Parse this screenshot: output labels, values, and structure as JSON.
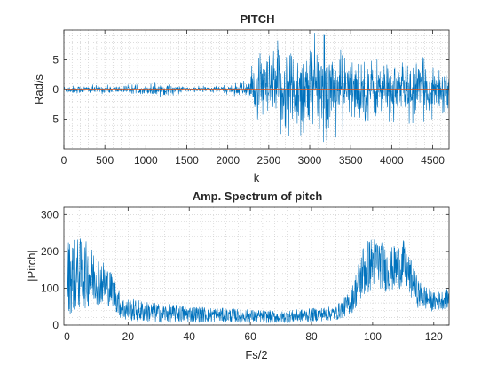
{
  "chart_data": [
    {
      "type": "line",
      "title": "PITCH",
      "xlabel": "k",
      "ylabel": "Rad/s",
      "xlim": [
        0,
        4700
      ],
      "ylim": [
        -10,
        10
      ],
      "xticks": [
        0,
        500,
        1000,
        1500,
        2000,
        2500,
        3000,
        3500,
        4000,
        4500
      ],
      "yticks": [
        -5,
        0,
        5
      ],
      "grid": "minor-dotted",
      "series": [
        {
          "color": "#0072BD",
          "description": "noisy signal, low amplitude before k≈2200, high amplitude after",
          "envelope": [
            {
              "k": 0,
              "amp": 0.8
            },
            {
              "k": 1000,
              "amp": 0.8
            },
            {
              "k": 1100,
              "amp": 1.5
            },
            {
              "k": 1500,
              "amp": 0.5
            },
            {
              "k": 2000,
              "amp": 0.8
            },
            {
              "k": 2200,
              "amp": 1.5
            },
            {
              "k": 2350,
              "amp": 5.5
            },
            {
              "k": 2650,
              "amp": 9.5
            },
            {
              "k": 3150,
              "amp": 9.5
            },
            {
              "k": 3500,
              "amp": 6.5
            },
            {
              "k": 4000,
              "amp": 6.0
            },
            {
              "k": 4700,
              "amp": 5.0
            }
          ]
        },
        {
          "color": "#D95319",
          "description": "near-zero line",
          "x": [
            0,
            4700
          ],
          "y": [
            0,
            0
          ]
        }
      ]
    },
    {
      "type": "line",
      "title": "Amp. Spectrum of pitch",
      "xlabel": "Fs/2",
      "ylabel": "|Pitch|",
      "xlim": [
        -1,
        125
      ],
      "ylim": [
        0,
        320
      ],
      "xticks": [
        0,
        20,
        40,
        60,
        80,
        100,
        120
      ],
      "yticks": [
        0,
        100,
        200,
        300
      ],
      "grid": "minor-dotted",
      "series": [
        {
          "color": "#0072BD",
          "envelope": [
            {
              "f": 0,
              "base": 120,
              "amp": 160
            },
            {
              "f": 5,
              "base": 130,
              "amp": 150
            },
            {
              "f": 10,
              "base": 120,
              "amp": 110
            },
            {
              "f": 15,
              "base": 90,
              "amp": 70
            },
            {
              "f": 18,
              "base": 40,
              "amp": 50
            },
            {
              "f": 30,
              "base": 30,
              "amp": 40
            },
            {
              "f": 50,
              "base": 25,
              "amp": 30
            },
            {
              "f": 70,
              "base": 20,
              "amp": 25
            },
            {
              "f": 88,
              "base": 30,
              "amp": 30
            },
            {
              "f": 93,
              "base": 60,
              "amp": 50
            },
            {
              "f": 97,
              "base": 140,
              "amp": 120
            },
            {
              "f": 101,
              "base": 170,
              "amp": 110
            },
            {
              "f": 105,
              "base": 140,
              "amp": 90
            },
            {
              "f": 110,
              "base": 160,
              "amp": 100
            },
            {
              "f": 115,
              "base": 80,
              "amp": 60
            },
            {
              "f": 120,
              "base": 60,
              "amp": 40
            },
            {
              "f": 125,
              "base": 70,
              "amp": 40
            }
          ]
        }
      ]
    }
  ]
}
